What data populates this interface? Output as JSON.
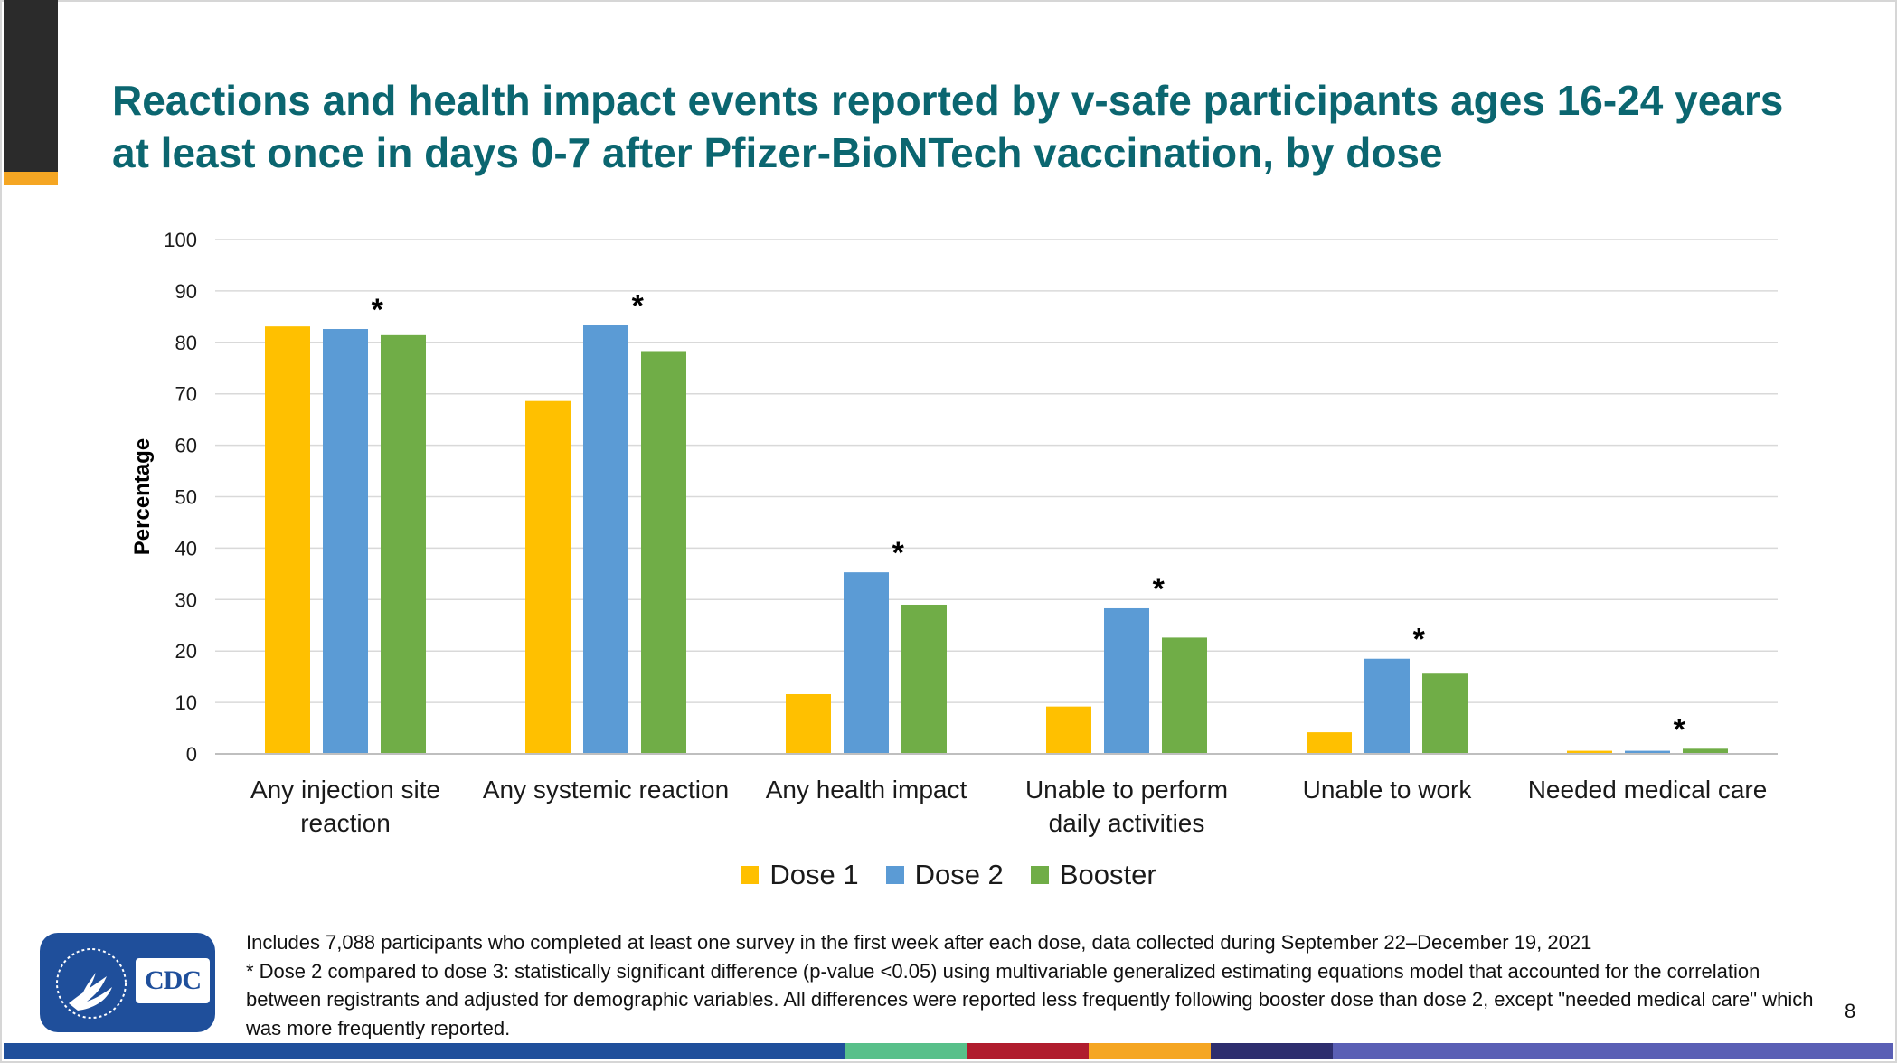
{
  "title": {
    "line1": "Reactions and health impact events reported by v-safe participants ages 16-24 years",
    "line2": "at least once in days 0-7 after Pfizer-BioNTech vaccination, by dose"
  },
  "chart_data": {
    "type": "bar",
    "title": "Reactions and health impact events reported by v-safe participants ages 16-24 years at least once in days 0-7 after Pfizer-BioNTech vaccination, by dose",
    "xlabel": "",
    "ylabel": "Percentage",
    "ylim": [
      0,
      100
    ],
    "yticks": [
      "0",
      "10",
      "20",
      "30",
      "40",
      "50",
      "60",
      "70",
      "80",
      "90",
      "100"
    ],
    "grid": true,
    "legend_position": "bottom",
    "categories": [
      [
        "Any injection site",
        "reaction"
      ],
      [
        "Any systemic reaction"
      ],
      [
        "Any health impact"
      ],
      [
        "Unable to perform",
        "daily activities"
      ],
      [
        "Unable to work"
      ],
      [
        "Needed medical care"
      ]
    ],
    "series": [
      {
        "name": "Dose 1",
        "color": "#ffc000",
        "values": [
          83.1,
          68.6,
          11.6,
          9.2,
          4.2,
          0.6
        ]
      },
      {
        "name": "Dose 2",
        "color": "#5b9bd5",
        "values": [
          82.6,
          83.4,
          35.3,
          28.3,
          18.5,
          0.6
        ]
      },
      {
        "name": "Booster",
        "color": "#70ad47",
        "values": [
          81.4,
          78.3,
          29.0,
          22.6,
          15.6,
          1.0
        ]
      }
    ],
    "annotations": [
      "*",
      "*",
      "*",
      "*",
      "*",
      "*"
    ]
  },
  "legend": {
    "items": [
      {
        "label": "Dose 1",
        "color": "#ffc000"
      },
      {
        "label": "Dose 2",
        "color": "#5b9bd5"
      },
      {
        "label": "Booster",
        "color": "#70ad47"
      }
    ]
  },
  "logo": {
    "text": "CDC"
  },
  "footnote": {
    "line1": "Includes 7,088 participants who completed at least one survey in the first week after each dose, data collected during September 22–December 19, 2021",
    "line2": "* Dose 2 compared to dose 3: statistically significant difference (p-value <0.05) using multivariable generalized estimating equations model that accounted for the correlation between registrants and adjusted for demographic variables. All differences were reported less frequently following booster dose than dose 2, except \"needed medical care\" which was more frequently reported."
  },
  "page_number": "8",
  "colors": {
    "title": "#0b6670",
    "stripe": [
      "#1f4f9b",
      "#58c08a",
      "#b01c2e",
      "#f5a623",
      "#2d2e6e",
      "#5a5fb5"
    ]
  }
}
